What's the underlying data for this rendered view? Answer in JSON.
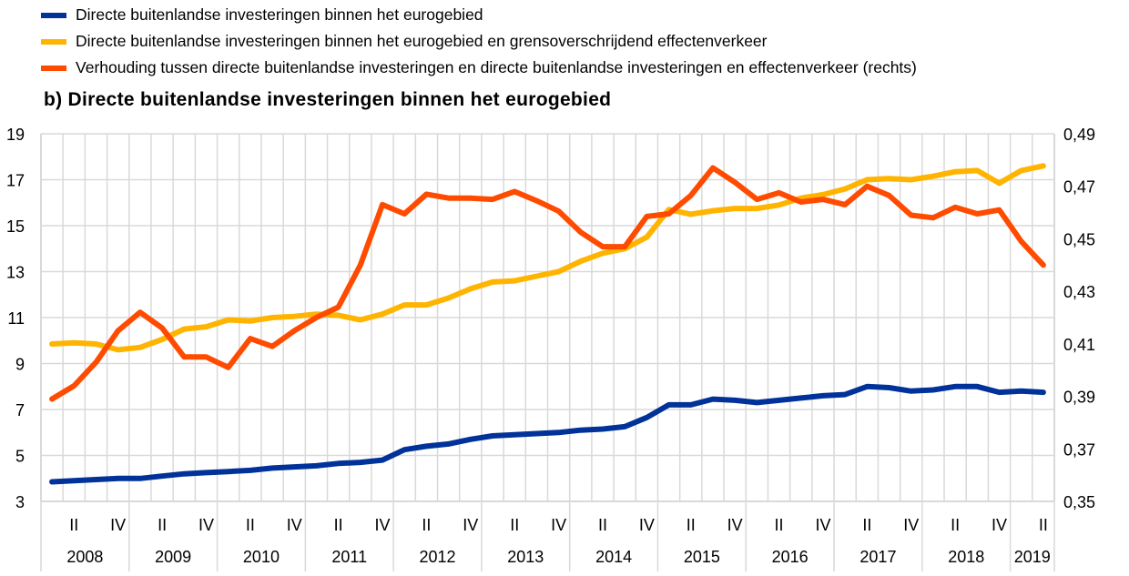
{
  "chart_data": {
    "type": "line",
    "title": "b) Directe buitenlandse investeringen binnen het eurogebied",
    "years": [
      "2008",
      "2009",
      "2010",
      "2011",
      "2012",
      "2013",
      "2014",
      "2015",
      "2016",
      "2017",
      "2018",
      "2019"
    ],
    "quarter_tick_labels": [
      "II",
      "IV"
    ],
    "x_start": "2008 Q1",
    "x_end": "2019 Q2",
    "y_left": {
      "range": [
        3,
        19
      ],
      "ticks": [
        "3",
        "5",
        "7",
        "9",
        "11",
        "13",
        "15",
        "17",
        "19"
      ]
    },
    "y_right": {
      "range": [
        0.35,
        0.49
      ],
      "ticks": [
        "0,35",
        "0,37",
        "0,39",
        "0,41",
        "0,43",
        "0,45",
        "0,47",
        "0,49"
      ]
    },
    "grid": true,
    "legend_position": "top",
    "series": [
      {
        "name": "Directe buitenlandse investeringen binnen het eurogebied",
        "axis": "left",
        "color": "#003299",
        "values": [
          3.85,
          3.9,
          3.95,
          4.0,
          4.0,
          4.1,
          4.2,
          4.25,
          4.3,
          4.35,
          4.45,
          4.5,
          4.55,
          4.65,
          4.7,
          4.8,
          5.25,
          5.4,
          5.5,
          5.7,
          5.85,
          5.9,
          5.95,
          6.0,
          6.1,
          6.15,
          6.25,
          6.65,
          7.2,
          7.2,
          7.45,
          7.4,
          7.3,
          7.4,
          7.5,
          7.6,
          7.65,
          8.0,
          7.95,
          7.8,
          7.85,
          8.0,
          8.0,
          7.75,
          7.8,
          7.75
        ]
      },
      {
        "name": "Directe buitenlandse investeringen binnen het eurogebied en grensoverschrijdend effectenverkeer",
        "axis": "left",
        "color": "#FFB400",
        "values": [
          9.85,
          9.9,
          9.85,
          9.6,
          9.7,
          10.05,
          10.5,
          10.6,
          10.9,
          10.85,
          11.0,
          11.05,
          11.15,
          11.1,
          10.9,
          11.15,
          11.55,
          11.55,
          11.85,
          12.25,
          12.55,
          12.6,
          12.8,
          13.0,
          13.45,
          13.8,
          14.0,
          14.5,
          15.7,
          15.5,
          15.65,
          15.75,
          15.75,
          15.9,
          16.2,
          16.35,
          16.6,
          17.0,
          17.05,
          17.0,
          17.15,
          17.35,
          17.4,
          16.85,
          17.4,
          17.6
        ]
      },
      {
        "name": "Verhouding tussen directe buitenlandse investeringen en directe buitenlandse investeringen en effectenverkeer (rechts)",
        "axis": "right",
        "color": "#FF4B00",
        "values": [
          0.389,
          0.394,
          0.403,
          0.415,
          0.422,
          0.416,
          0.405,
          0.405,
          0.401,
          0.412,
          0.409,
          0.415,
          0.42,
          0.424,
          0.44,
          0.463,
          0.4595,
          0.467,
          0.4655,
          0.4655,
          0.465,
          0.468,
          0.4645,
          0.4605,
          0.4525,
          0.447,
          0.447,
          0.4585,
          0.4595,
          0.4665,
          0.477,
          0.4715,
          0.465,
          0.4675,
          0.464,
          0.465,
          0.463,
          0.47,
          0.4665,
          0.459,
          0.458,
          0.462,
          0.4595,
          0.461,
          0.449,
          0.44
        ]
      }
    ]
  }
}
